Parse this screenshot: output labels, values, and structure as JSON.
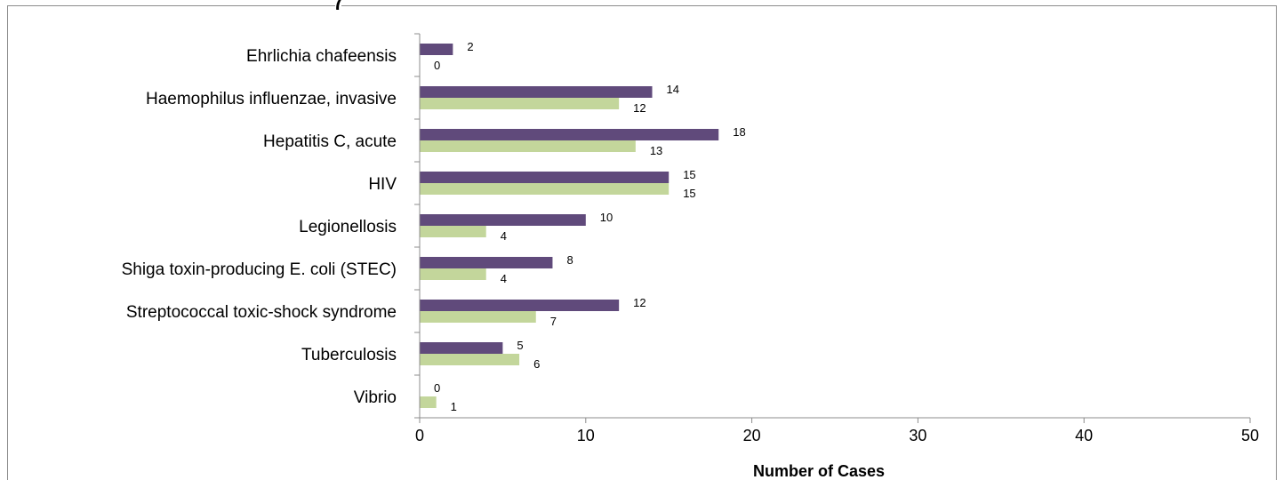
{
  "chart_data": {
    "type": "bar",
    "orientation": "horizontal",
    "title_fragment": "(",
    "categories": [
      "Ehrlichia chafeensis",
      "Haemophilus influenzae, invasive",
      "Hepatitis C, acute",
      "HIV",
      "Legionellosis",
      "Shiga toxin-producing E. coli (STEC)",
      "Streptococcal toxic-shock syndrome",
      "Tuberculosis",
      "Vibrio"
    ],
    "series": [
      {
        "values": [
          2,
          14,
          18,
          15,
          10,
          8,
          12,
          5,
          0
        ],
        "color": "#604a7b"
      },
      {
        "values": [
          0,
          12,
          13,
          15,
          4,
          4,
          7,
          6,
          1
        ],
        "color": "#c3d69b"
      }
    ],
    "xlabel": "Number of Cases",
    "xlim": [
      0,
      50
    ],
    "xticks": [
      0,
      10,
      20,
      30,
      40,
      50
    ],
    "grid": false,
    "legend": "none"
  }
}
